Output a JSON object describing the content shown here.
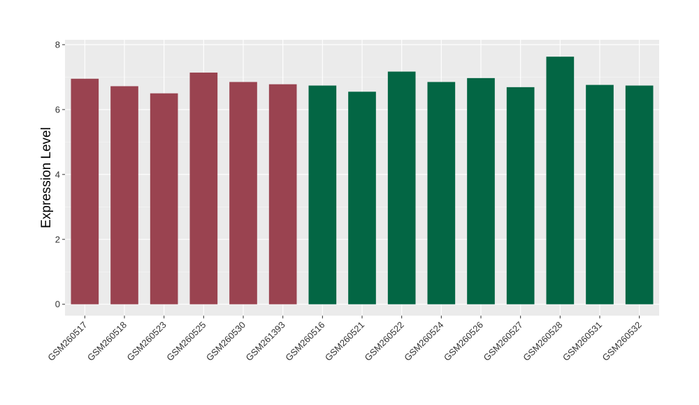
{
  "chart_data": {
    "type": "bar",
    "title": "",
    "xlabel": "",
    "ylabel": "Expression Level",
    "ylim": [
      -0.35,
      8.15
    ],
    "yticks": [
      0,
      2,
      4,
      6,
      8
    ],
    "grid": true,
    "legend": "none",
    "panel_color": "#ebebeb",
    "categories": [
      "GSM260517",
      "GSM260518",
      "GSM260523",
      "GSM260525",
      "GSM260530",
      "GSM261393",
      "GSM260516",
      "GSM260521",
      "GSM260522",
      "GSM260524",
      "GSM260526",
      "GSM260527",
      "GSM260528",
      "GSM260531",
      "GSM260532"
    ],
    "values": [
      6.95,
      6.72,
      6.5,
      7.14,
      6.85,
      6.78,
      6.74,
      6.55,
      7.17,
      6.85,
      6.97,
      6.69,
      7.63,
      6.76,
      6.74
    ],
    "bar_colors": [
      "#9a4350",
      "#9a4350",
      "#9a4350",
      "#9a4350",
      "#9a4350",
      "#9a4350",
      "#036644",
      "#036644",
      "#036644",
      "#036644",
      "#036644",
      "#036644",
      "#036644",
      "#036644",
      "#036644"
    ]
  }
}
